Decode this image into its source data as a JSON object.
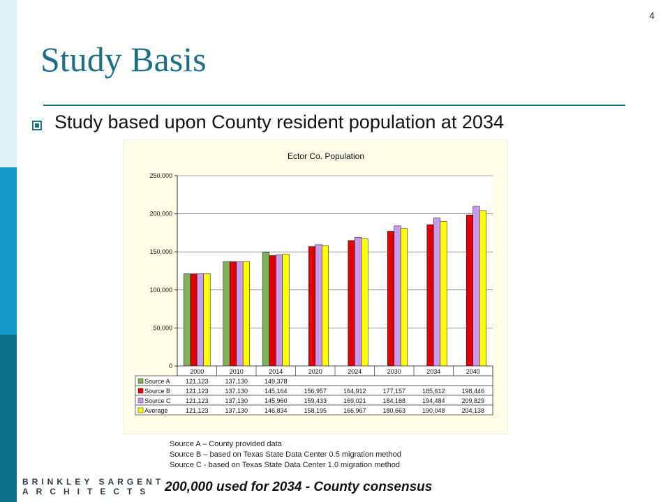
{
  "page_number": "4",
  "title": "Study Basis",
  "bullet": "Study based upon County resident population at 2034",
  "chart_data": {
    "type": "bar",
    "title": "Ector Co. Population",
    "categories": [
      "2000",
      "2010",
      "2014",
      "2020",
      "2024",
      "2030",
      "2034",
      "2040"
    ],
    "ylim": [
      0,
      250000
    ],
    "yticks": [
      "0",
      "50,000",
      "100,000",
      "150,000",
      "200,000",
      "250,000"
    ],
    "series": [
      {
        "name": "Source A",
        "color": "#7fb35a",
        "values": [
          121123,
          137130,
          149378,
          null,
          null,
          null,
          null,
          null
        ],
        "labels": [
          "121,123",
          "137,130",
          "149,378",
          "",
          "",
          "",
          "",
          ""
        ]
      },
      {
        "name": "Source B",
        "color": "#e00000",
        "values": [
          121123,
          137130,
          145164,
          156957,
          164912,
          177157,
          185612,
          198446
        ],
        "labels": [
          "121,123",
          "137,130",
          "145,164",
          "156,957",
          "164,912",
          "177,157",
          "185,612",
          "198,446"
        ]
      },
      {
        "name": "Source C",
        "color": "#c79cf0",
        "values": [
          121123,
          137130,
          145960,
          159433,
          169021,
          184168,
          194484,
          209829
        ],
        "labels": [
          "121,123",
          "137,130",
          "145,960",
          "159,433",
          "169,021",
          "184,168",
          "194,484",
          "209,829"
        ]
      },
      {
        "name": "Average",
        "color": "#ffff00",
        "values": [
          121123,
          137130,
          146834,
          158195,
          166967,
          180663,
          190048,
          204138
        ],
        "labels": [
          "121,123",
          "137,130",
          "146,834",
          "158,195",
          "166,967",
          "180,663",
          "190,048",
          "204,138"
        ]
      }
    ],
    "grid": true,
    "legend": "data-table"
  },
  "notes": [
    "Source A – County provided data",
    "Source B – based on Texas State Data Center 0.5 migration method",
    "Source C - based on Texas State Data Center 1.0 migration method"
  ],
  "logo": {
    "line1": "BRINKLEY SARGENT",
    "line2": "ARCHITECTS"
  },
  "consensus": "200,000 used for 2034 - County consensus"
}
